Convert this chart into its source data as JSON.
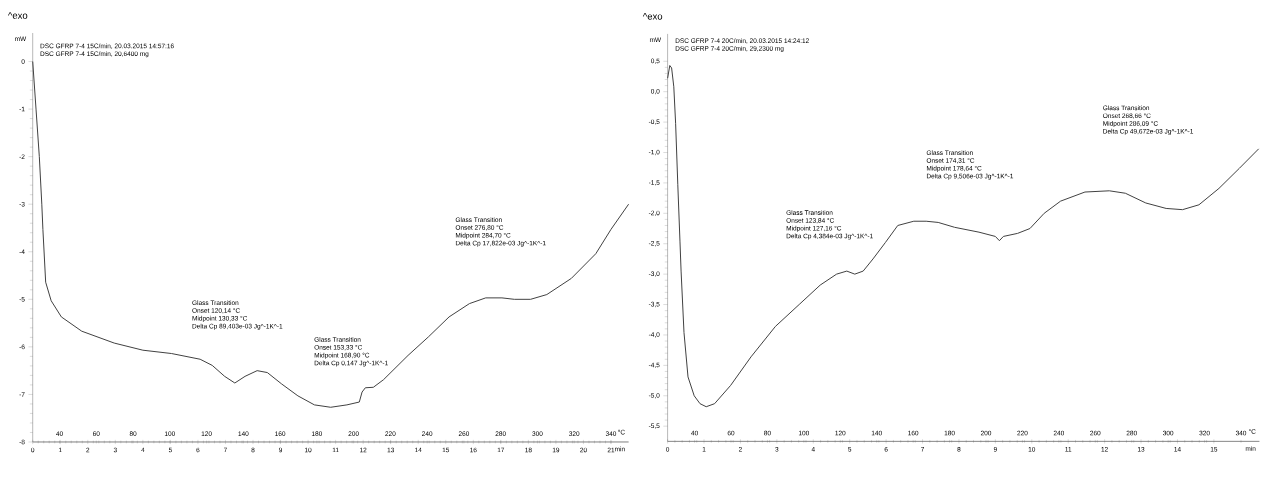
{
  "chart_data": [
    {
      "type": "line",
      "title": "DSC GFRP 7-4 15C/min, 20.03.2015 14:57:16",
      "subtitle": "DSC GFRP 7-4 15C/min, 20,6400 mg",
      "xlabel": "min",
      "x2label": "°C",
      "ylabel": "mW",
      "annotations": [
        "^exo",
        "Glass Transition",
        "Onset 120,14 °C",
        "Midpoint 130,33 °C",
        "Delta Cp 89,403e-03 Jg^-1K^-1",
        "Glass Transition",
        "Onset 153,33 °C",
        "Midpoint 168,90 °C",
        "Delta Cp 0,147 Jg^-1K^-1",
        "Glass Transition",
        "Onset 276,80 °C",
        "Midpoint 284,70 °C",
        "Delta Cp 17,822e-03 Jg^-1K^-1"
      ],
      "xlim": [
        0,
        21.64
      ],
      "xticks": [
        0,
        1,
        2,
        3,
        4,
        5,
        6,
        7,
        8,
        9,
        10,
        11,
        12,
        13,
        14,
        15,
        16,
        17,
        18,
        19,
        20,
        21
      ],
      "x2lim": [
        25.4,
        349.6
      ],
      "x2ticks": [
        40,
        60,
        80,
        100,
        120,
        140,
        160,
        180,
        200,
        220,
        240,
        260,
        280,
        300,
        320,
        340
      ],
      "ylim": [
        -8,
        0.6
      ],
      "yticks": [
        -8,
        -7,
        -6,
        -5,
        -4,
        -3,
        -2,
        -1,
        0
      ],
      "series": [
        {
          "color": "#404040",
          "x": [
            0,
            0.12,
            0.24,
            0.33,
            0.37,
            0.47,
            0.67,
            1.04,
            1.78,
            2.96,
            4.0,
            5.04,
            6.08,
            6.52,
            6.97,
            7.34,
            7.71,
            8.15,
            8.52,
            9.04,
            9.63,
            10.23,
            10.82,
            11.41,
            11.86,
            11.96,
            12.08,
            12.37,
            12.74,
            13.63,
            14.37,
            15.12,
            15.86,
            16.45,
            17.04,
            17.49,
            18.08,
            18.67,
            19.56,
            20.45,
            21.0,
            21.64
          ],
          "values": [
            0,
            -1,
            -2,
            -3,
            -3.53,
            -4.64,
            -5.03,
            -5.37,
            -5.67,
            -5.92,
            -6.07,
            -6.14,
            -6.26,
            -6.39,
            -6.62,
            -6.76,
            -6.62,
            -6.5,
            -6.54,
            -6.78,
            -7.03,
            -7.22,
            -7.27,
            -7.22,
            -7.16,
            -6.95,
            -6.86,
            -6.85,
            -6.69,
            -6.18,
            -5.79,
            -5.37,
            -5.09,
            -4.97,
            -4.97,
            -5.0,
            -5.0,
            -4.9,
            -4.56,
            -4.04,
            -3.53,
            -3.0
          ]
        }
      ]
    },
    {
      "type": "line",
      "title": "DSC GFRP 7-4 20C/min, 20.03.2015 14:24:12",
      "subtitle": "DSC GFRP 7-4 20C/min, 29,2300 mg",
      "xlabel": "min",
      "x2label": "°C",
      "ylabel": "mW",
      "annotations": [
        "^exo",
        "Glass Transition",
        "Onset 123,84 °C",
        "Midpoint 127,16 °C",
        "Delta Cp 4,384e-03 Jg^-1K^-1",
        "Glass Transition",
        "Onset 174,31 °C",
        "Midpoint 178,64 °C",
        "Delta Cp 9,506e-03 Jg^-1K^-1",
        "Glass Transition",
        "Onset 268,66 °C",
        "Midpoint 286,09 °C",
        "Delta Cp 49,672e-03 Jg^-1K^-1"
      ],
      "xlim": [
        0,
        16.25
      ],
      "xticks": [
        0,
        1,
        2,
        3,
        4,
        5,
        6,
        7,
        8,
        9,
        10,
        11,
        12,
        13,
        14,
        15
      ],
      "x2lim": [
        25.2,
        350.1
      ],
      "x2ticks": [
        40,
        60,
        80,
        100,
        120,
        140,
        160,
        180,
        200,
        220,
        240,
        260,
        280,
        300,
        320,
        340
      ],
      "ylim": [
        -5.75,
        0.95
      ],
      "yticks": [
        {
          "value": -5.5,
          "label": "-5,5"
        },
        {
          "value": -5,
          "label": "-5,0"
        },
        {
          "value": -4.5,
          "label": "-4,5"
        },
        {
          "value": -4,
          "label": "-4,0"
        },
        {
          "value": -3.5,
          "label": "-3,5"
        },
        {
          "value": -3,
          "label": "-3,0"
        },
        {
          "value": -2.5,
          "label": "-2,5"
        },
        {
          "value": -2,
          "label": "-2,0"
        },
        {
          "value": -1.5,
          "label": "-1,5"
        },
        {
          "value": -1,
          "label": "-1,0"
        },
        {
          "value": -0.5,
          "label": "-0,5"
        },
        {
          "value": 0,
          "label": "0,0"
        },
        {
          "value": 0.5,
          "label": "0,5"
        }
      ],
      "series": [
        {
          "color": "#404040",
          "x": [
            0,
            0.06,
            0.11,
            0.17,
            0.22,
            0.28,
            0.34,
            0.37,
            0.45,
            0.56,
            0.73,
            0.89,
            1.06,
            1.29,
            1.73,
            2.29,
            2.96,
            3.63,
            4.19,
            4.64,
            4.92,
            5.14,
            5.37,
            5.64,
            5.98,
            6.32,
            6.76,
            7.1,
            7.43,
            7.88,
            8.55,
            9.0,
            9.11,
            9.22,
            9.61,
            9.95,
            10.34,
            10.79,
            11.46,
            12.13,
            12.57,
            13.13,
            13.69,
            14.14,
            14.59,
            15.14,
            15.7,
            16.23
          ],
          "values": [
            0.22,
            0.43,
            0.39,
            0.08,
            -0.52,
            -1.53,
            -2.47,
            -2.95,
            -3.96,
            -4.69,
            -5.0,
            -5.13,
            -5.18,
            -5.13,
            -4.83,
            -4.36,
            -3.86,
            -3.49,
            -3.18,
            -3.0,
            -2.95,
            -3.0,
            -2.95,
            -2.75,
            -2.48,
            -2.2,
            -2.13,
            -2.13,
            -2.15,
            -2.23,
            -2.31,
            -2.38,
            -2.45,
            -2.38,
            -2.33,
            -2.25,
            -2.0,
            -1.8,
            -1.65,
            -1.63,
            -1.67,
            -1.83,
            -1.92,
            -1.94,
            -1.86,
            -1.59,
            -1.26,
            -0.94
          ]
        }
      ]
    }
  ]
}
